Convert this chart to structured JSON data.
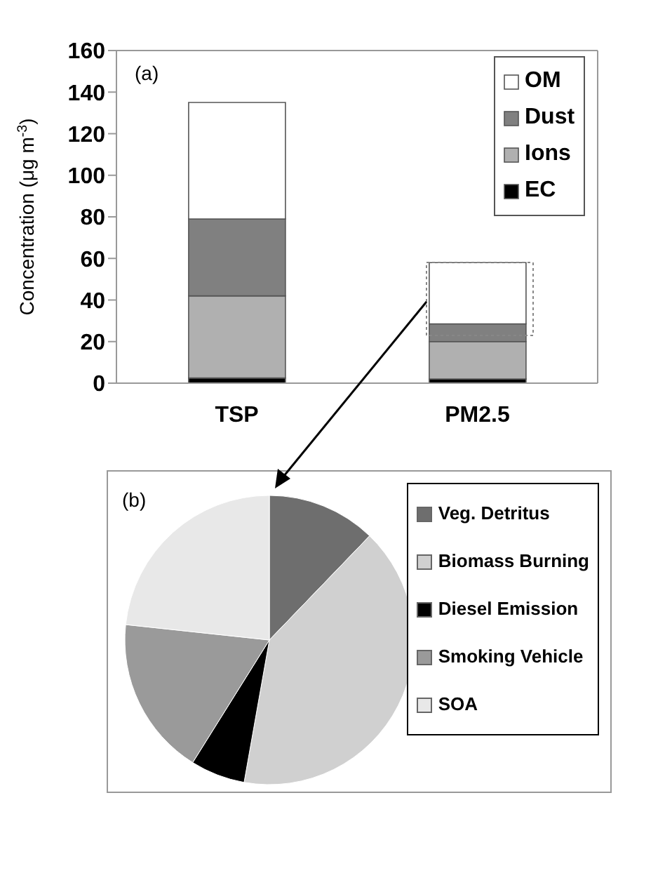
{
  "chart_data": [
    {
      "type": "bar",
      "stacked": true,
      "ylabel": "Concentration (μg m$^{-3}$)",
      "categories": [
        "TSP",
        "PM2.5"
      ],
      "ylim": [
        0,
        160
      ],
      "yticks": [
        0,
        20,
        40,
        60,
        80,
        100,
        120,
        140,
        160
      ],
      "grid": false,
      "legend": "top right",
      "annotations": [
        "(a)"
      ],
      "series": [
        {
          "name": "EC",
          "color": "#000000",
          "values": [
            2.5,
            2
          ]
        },
        {
          "name": "Ions",
          "color": "#b0b0b0",
          "values": [
            39.5,
            18
          ]
        },
        {
          "name": "Dust",
          "color": "#808080",
          "values": [
            37,
            8.5
          ]
        },
        {
          "name": "OM",
          "color": "#ffffff",
          "values": [
            56,
            29.5
          ]
        }
      ]
    },
    {
      "type": "pie",
      "categories": [
        "Veg. Detritus",
        "Biomass Burning",
        "Diesel Emission",
        "Smoking Vehicle",
        "SOA"
      ],
      "values": [
        12.2,
        40.6,
        6.1,
        17.8,
        23.3
      ],
      "colors": [
        "#6e6e6e",
        "#d0d0d0",
        "#000000",
        "#9a9a9a",
        "#e8e8e8"
      ],
      "legend": "right",
      "annotations": [
        "(b)"
      ]
    }
  ]
}
